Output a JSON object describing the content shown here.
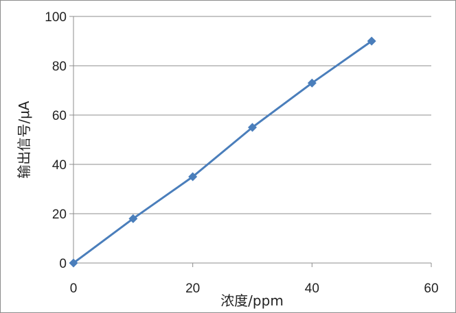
{
  "chart_data": {
    "type": "scatter",
    "title": "",
    "xlabel": "浓度/ppm",
    "ylabel": "输出信号/μA",
    "xlim": [
      0,
      60
    ],
    "ylim": [
      0,
      100
    ],
    "xticks": [
      0,
      20,
      40,
      60
    ],
    "yticks": [
      0,
      20,
      40,
      60,
      80,
      100
    ],
    "grid": "horizontal",
    "legend": "none",
    "marker": "diamond",
    "trendline": "linear",
    "series": [
      {
        "x": [
          0,
          10,
          20,
          30,
          40,
          50
        ],
        "y": [
          0,
          18,
          35,
          55,
          73,
          90
        ],
        "color": "#4a7ebb"
      }
    ]
  },
  "colors": {
    "series": "#4a7ebb",
    "grid": "#8c8c8c",
    "axis": "#8c8c8c"
  }
}
